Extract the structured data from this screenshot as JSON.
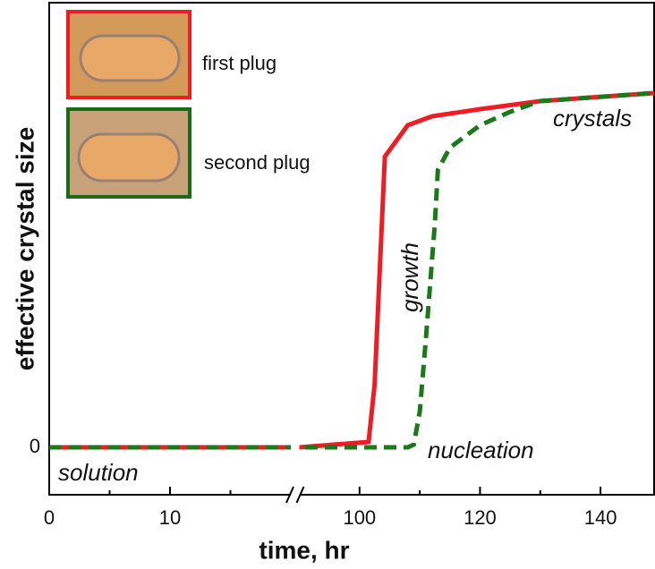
{
  "chart_data": {
    "type": "line",
    "x_label": "time, hr",
    "y_label": "effective crystal size",
    "xlim": [
      0,
      148.9
    ],
    "xbreak": [
      20,
      90
    ],
    "xticks": [
      0,
      10,
      100,
      120,
      140
    ],
    "xminorticks": [
      5,
      15,
      110,
      130
    ],
    "ylim": [
      -1.06,
      9.94
    ],
    "yticks": [
      0
    ],
    "series": [
      {
        "name": "first plug",
        "color": "#ee1c24",
        "dash": false,
        "x": [
          0,
          20,
          90,
          101.5,
          102.5,
          104.2,
          108,
          112,
          120,
          130,
          148.9
        ],
        "values": [
          0,
          0,
          0,
          0.12,
          1.4,
          6.5,
          7.2,
          7.4,
          7.56,
          7.74,
          7.92
        ]
      },
      {
        "name": "second plug",
        "color": "#1a7a1a",
        "dash": true,
        "x": [
          0,
          20,
          90,
          108,
          109,
          110,
          111,
          112.5,
          113,
          115,
          120,
          125,
          130,
          148.9
        ],
        "values": [
          0,
          0,
          0,
          0,
          0.06,
          0.8,
          2.4,
          5.0,
          6.2,
          6.7,
          7.2,
          7.5,
          7.74,
          7.92
        ]
      }
    ],
    "annotations": [
      "solution",
      "nucleation",
      "growth",
      "crystals"
    ]
  }
}
